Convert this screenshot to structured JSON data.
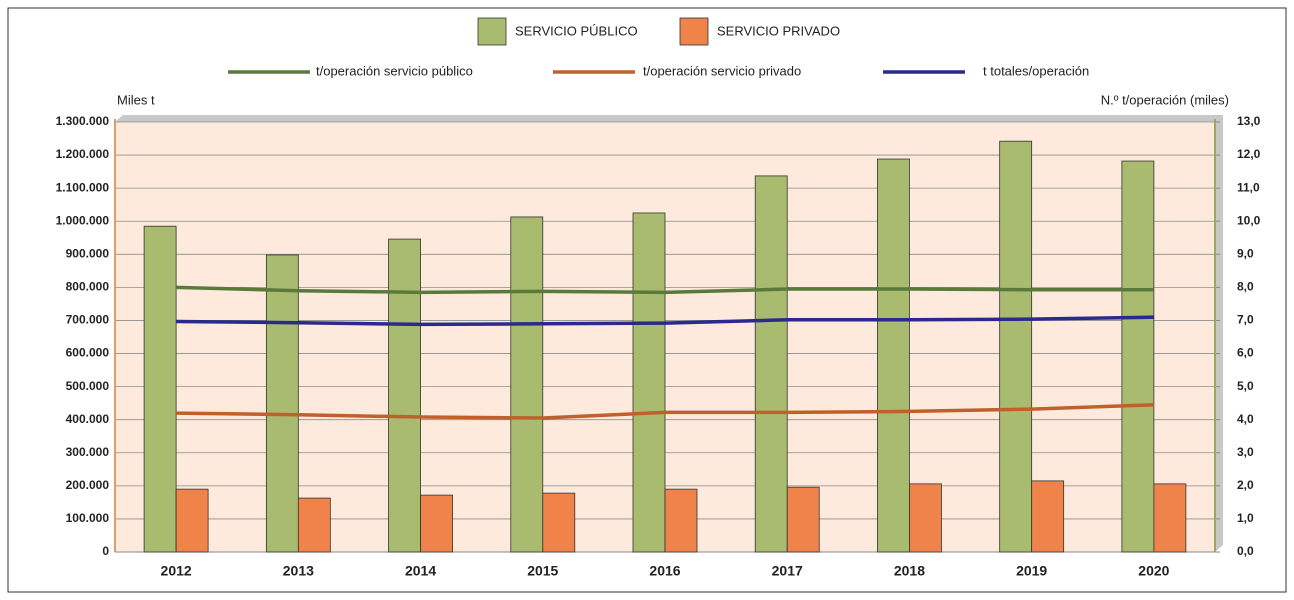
{
  "chart_data": {
    "type": "bar",
    "categories": [
      "2012",
      "2013",
      "2014",
      "2015",
      "2016",
      "2017",
      "2018",
      "2019",
      "2020"
    ],
    "y_label": "Miles t",
    "y2_label": "N.º t/operación (miles)",
    "ylim": [
      0,
      1300000
    ],
    "yticks": [
      0,
      {
        "value": 100000,
        "label": "100.000"
      },
      {
        "value": 200000,
        "label": "200.000"
      },
      {
        "value": 300000,
        "label": "300.000"
      },
      {
        "value": 400000,
        "label": "400.000"
      },
      {
        "value": 500000,
        "label": "500.000"
      },
      {
        "value": 600000,
        "label": "600.000"
      },
      {
        "value": 700000,
        "label": "700.000"
      },
      {
        "value": 800000,
        "label": "800.000"
      },
      {
        "value": 900000,
        "label": "900.000"
      },
      {
        "value": 1000000,
        "label": "1.000.000"
      },
      {
        "value": 1100000,
        "label": "1.100.000"
      },
      {
        "value": 1200000,
        "label": "1.200.000"
      },
      {
        "value": 1300000,
        "label": "1.300.000"
      }
    ],
    "y2lim": [
      0,
      13
    ],
    "y2ticks": [
      {
        "value": 0,
        "label": "0,0"
      },
      {
        "value": 1,
        "label": "1,0"
      },
      {
        "value": 2,
        "label": "2,0"
      },
      {
        "value": 3,
        "label": "3,0"
      },
      {
        "value": 4,
        "label": "4,0"
      },
      {
        "value": 5,
        "label": "5,0"
      },
      {
        "value": 6,
        "label": "6,0"
      },
      {
        "value": 7,
        "label": "7,0"
      },
      {
        "value": 8,
        "label": "8,0"
      },
      {
        "value": 9,
        "label": "9,0"
      },
      {
        "value": 10,
        "label": "10,0"
      },
      {
        "value": 11,
        "label": "11,0"
      },
      {
        "value": 12,
        "label": "12,0"
      },
      {
        "value": 13,
        "label": "13,0"
      }
    ],
    "grid": true,
    "series": [
      {
        "name": "SERVICIO PÚBLICO",
        "type": "bar",
        "color": "#a9bb6f",
        "values": [
          985000,
          898000,
          946000,
          1013000,
          1025000,
          1137000,
          1188000,
          1242000,
          1182000
        ]
      },
      {
        "name": "SERVICIO PRIVADO",
        "type": "bar",
        "color": "#f0834a",
        "values": [
          190000,
          163000,
          172000,
          178000,
          190000,
          196000,
          206000,
          215000,
          206000
        ]
      },
      {
        "name": "t/operación servicio público",
        "type": "line",
        "axis": "y2",
        "color": "#5a7a3c",
        "values": [
          8.0,
          7.9,
          7.85,
          7.88,
          7.85,
          7.95,
          7.95,
          7.93,
          7.93
        ]
      },
      {
        "name": "t/operación servicio privado",
        "type": "line",
        "axis": "y2",
        "color": "#c0612b",
        "values": [
          4.2,
          4.15,
          4.08,
          4.05,
          4.22,
          4.22,
          4.25,
          4.32,
          4.45
        ]
      },
      {
        "name": "t totales/operación",
        "type": "line",
        "axis": "y2",
        "color": "#2a2a8c",
        "values": [
          6.97,
          6.93,
          6.88,
          6.9,
          6.92,
          7.02,
          7.02,
          7.04,
          7.1
        ]
      }
    ]
  }
}
